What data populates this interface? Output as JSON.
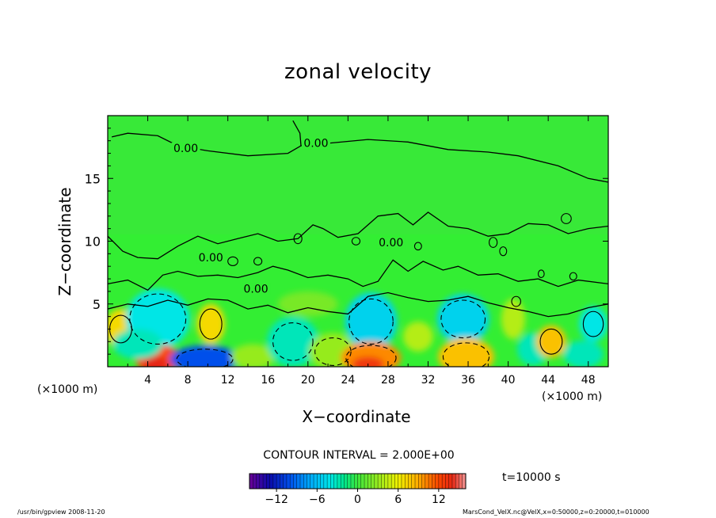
{
  "chart_data": {
    "type": "heatmap",
    "title": "zonal velocity",
    "xlabel": "X−coordinate",
    "ylabel": "Z−coordinate",
    "x_unit_left": "(×1000 m)",
    "x_unit_right": "(×1000 m)",
    "xlim": [
      0,
      50
    ],
    "ylim": [
      0,
      20
    ],
    "x_ticks": [
      4,
      8,
      12,
      16,
      20,
      24,
      28,
      32,
      36,
      40,
      44,
      48
    ],
    "y_ticks": [
      5,
      10,
      15
    ],
    "contour_interval_text": "CONTOUR INTERVAL = 2.000E+00",
    "contour_labels": [
      "0.00",
      "0.00",
      "0.00",
      "0.00",
      "0.00"
    ],
    "colorbar": {
      "min": -16,
      "max": 16,
      "ticks": [
        -12,
        -6,
        0,
        6,
        12
      ],
      "tick_labels": [
        "−12",
        "−6",
        "0",
        "6",
        "12"
      ]
    },
    "time_text": "t=10000 s",
    "grid": false
  },
  "footer": {
    "left": "/usr/bin/gpview   2008-11-20",
    "right": "MarsCond_VelX.nc@VelX,x=0:50000,z=0:20000,t=010000"
  },
  "colors": {
    "background_field": "#33ee33",
    "contour_line": "#000000",
    "frame": "#000000"
  }
}
